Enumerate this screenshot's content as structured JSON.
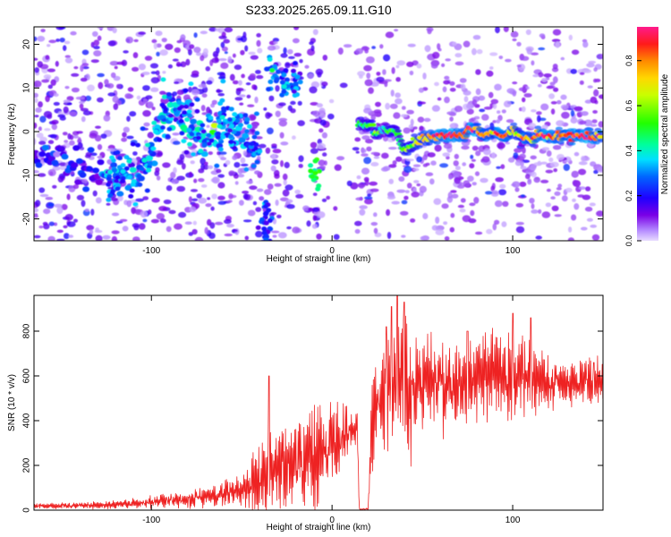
{
  "title": "S233.2025.265.09.11.G10",
  "chart_data": [
    {
      "type": "heatmap",
      "xlabel": "Height of straight line (km)",
      "ylabel": "Frequency (Hz)",
      "xlim": [
        -165,
        150
      ],
      "ylim": [
        -25,
        24
      ],
      "xticks": [
        -100,
        0,
        100
      ],
      "yticks": [
        -20,
        -10,
        0,
        10,
        20
      ],
      "colorbar": {
        "label": "Normalized spectral amplitude",
        "range": [
          0,
          0.95
        ],
        "ticks": [
          0.0,
          0.2,
          0.4,
          0.6,
          0.8
        ],
        "tick_labels": [
          "0.0",
          "0.2",
          "0.4",
          "0.6",
          "0.8"
        ]
      },
      "ridge": {
        "x": [
          -165,
          -150,
          -140,
          -130,
          -120,
          -110,
          -100,
          -95,
          -90,
          -85,
          -80,
          -75,
          -70,
          -65,
          -60,
          -55,
          -50,
          -45,
          -42,
          15,
          20,
          25,
          30,
          35,
          40,
          45,
          50,
          55,
          60,
          65,
          70,
          75,
          80,
          85,
          90,
          95,
          100,
          105,
          110,
          115,
          120,
          125,
          130,
          135,
          140,
          145,
          150
        ],
        "freq": [
          -6,
          -6,
          -8,
          -10,
          -11,
          -10,
          -5,
          3,
          4,
          5,
          3,
          0,
          -1,
          0,
          1,
          0,
          -1,
          -3,
          -5,
          2,
          1,
          0,
          1,
          0,
          -4,
          -3,
          -2,
          -1,
          -1,
          -1,
          -1,
          0,
          0,
          -1,
          0,
          -1,
          0,
          -1,
          -1,
          -1,
          -1,
          -1,
          -1,
          -1,
          -1,
          -1,
          -1
        ],
        "amp": [
          0.15,
          0.18,
          0.2,
          0.22,
          0.25,
          0.3,
          0.3,
          0.35,
          0.35,
          0.4,
          0.3,
          0.3,
          0.35,
          0.35,
          0.3,
          0.3,
          0.3,
          0.25,
          0.2,
          0.45,
          0.45,
          0.5,
          0.5,
          0.5,
          0.55,
          0.6,
          0.7,
          0.8,
          0.9,
          0.9,
          0.85,
          0.9,
          0.8,
          0.75,
          0.8,
          0.85,
          0.7,
          0.75,
          0.7,
          0.8,
          0.85,
          0.85,
          0.8,
          0.85,
          0.9,
          0.85,
          0.8
        ]
      },
      "blobs": [
        {
          "x": -33,
          "freq": 13,
          "amp": 0.3
        },
        {
          "x": -26,
          "freq": 11,
          "amp": 0.3
        },
        {
          "x": -20,
          "freq": 11,
          "amp": 0.25
        },
        {
          "x": -9,
          "freq": -10,
          "amp": 0.45
        },
        {
          "x": -37,
          "freq": -19,
          "amp": 0.2
        },
        {
          "x": -37,
          "freq": -24,
          "amp": 0.2
        }
      ]
    },
    {
      "type": "line",
      "xlabel": "Height of straight line (km)",
      "ylabel": "SNR (10 * v/v)",
      "xlim": [
        -165,
        150
      ],
      "ylim": [
        0,
        960
      ],
      "xticks": [
        -100,
        0,
        100
      ],
      "yticks": [
        0,
        200,
        400,
        600,
        800
      ],
      "color": "#ee2222",
      "envelope": {
        "x": [
          -165,
          -140,
          -120,
          -100,
          -80,
          -60,
          -50,
          -45,
          -40,
          -30,
          -20,
          -10,
          -5,
          0,
          5,
          10,
          14,
          15,
          20,
          22,
          25,
          30,
          35,
          40,
          45,
          50,
          60,
          70,
          80,
          90,
          100,
          110,
          120,
          130,
          140,
          150
        ],
        "mean": [
          20,
          20,
          25,
          35,
          50,
          70,
          90,
          110,
          140,
          170,
          190,
          230,
          270,
          300,
          330,
          350,
          360,
          5,
          5,
          380,
          470,
          520,
          530,
          560,
          550,
          560,
          560,
          560,
          580,
          590,
          600,
          580,
          560,
          560,
          570,
          580
        ],
        "amp": [
          12,
          14,
          18,
          30,
          40,
          60,
          80,
          110,
          170,
          200,
          200,
          230,
          210,
          230,
          150,
          120,
          100,
          3,
          4,
          200,
          260,
          280,
          300,
          330,
          260,
          220,
          200,
          180,
          200,
          210,
          220,
          160,
          110,
          100,
          120,
          110
        ]
      },
      "peaks": [
        {
          "x": -35,
          "y": 600
        },
        {
          "x": 30,
          "y": 820
        },
        {
          "x": 33,
          "y": 910
        },
        {
          "x": 36,
          "y": 960
        },
        {
          "x": 40,
          "y": 930
        },
        {
          "x": 75,
          "y": 800
        },
        {
          "x": 100,
          "y": 880
        },
        {
          "x": 110,
          "y": 860
        },
        {
          "x": 145,
          "y": 660
        }
      ]
    }
  ]
}
